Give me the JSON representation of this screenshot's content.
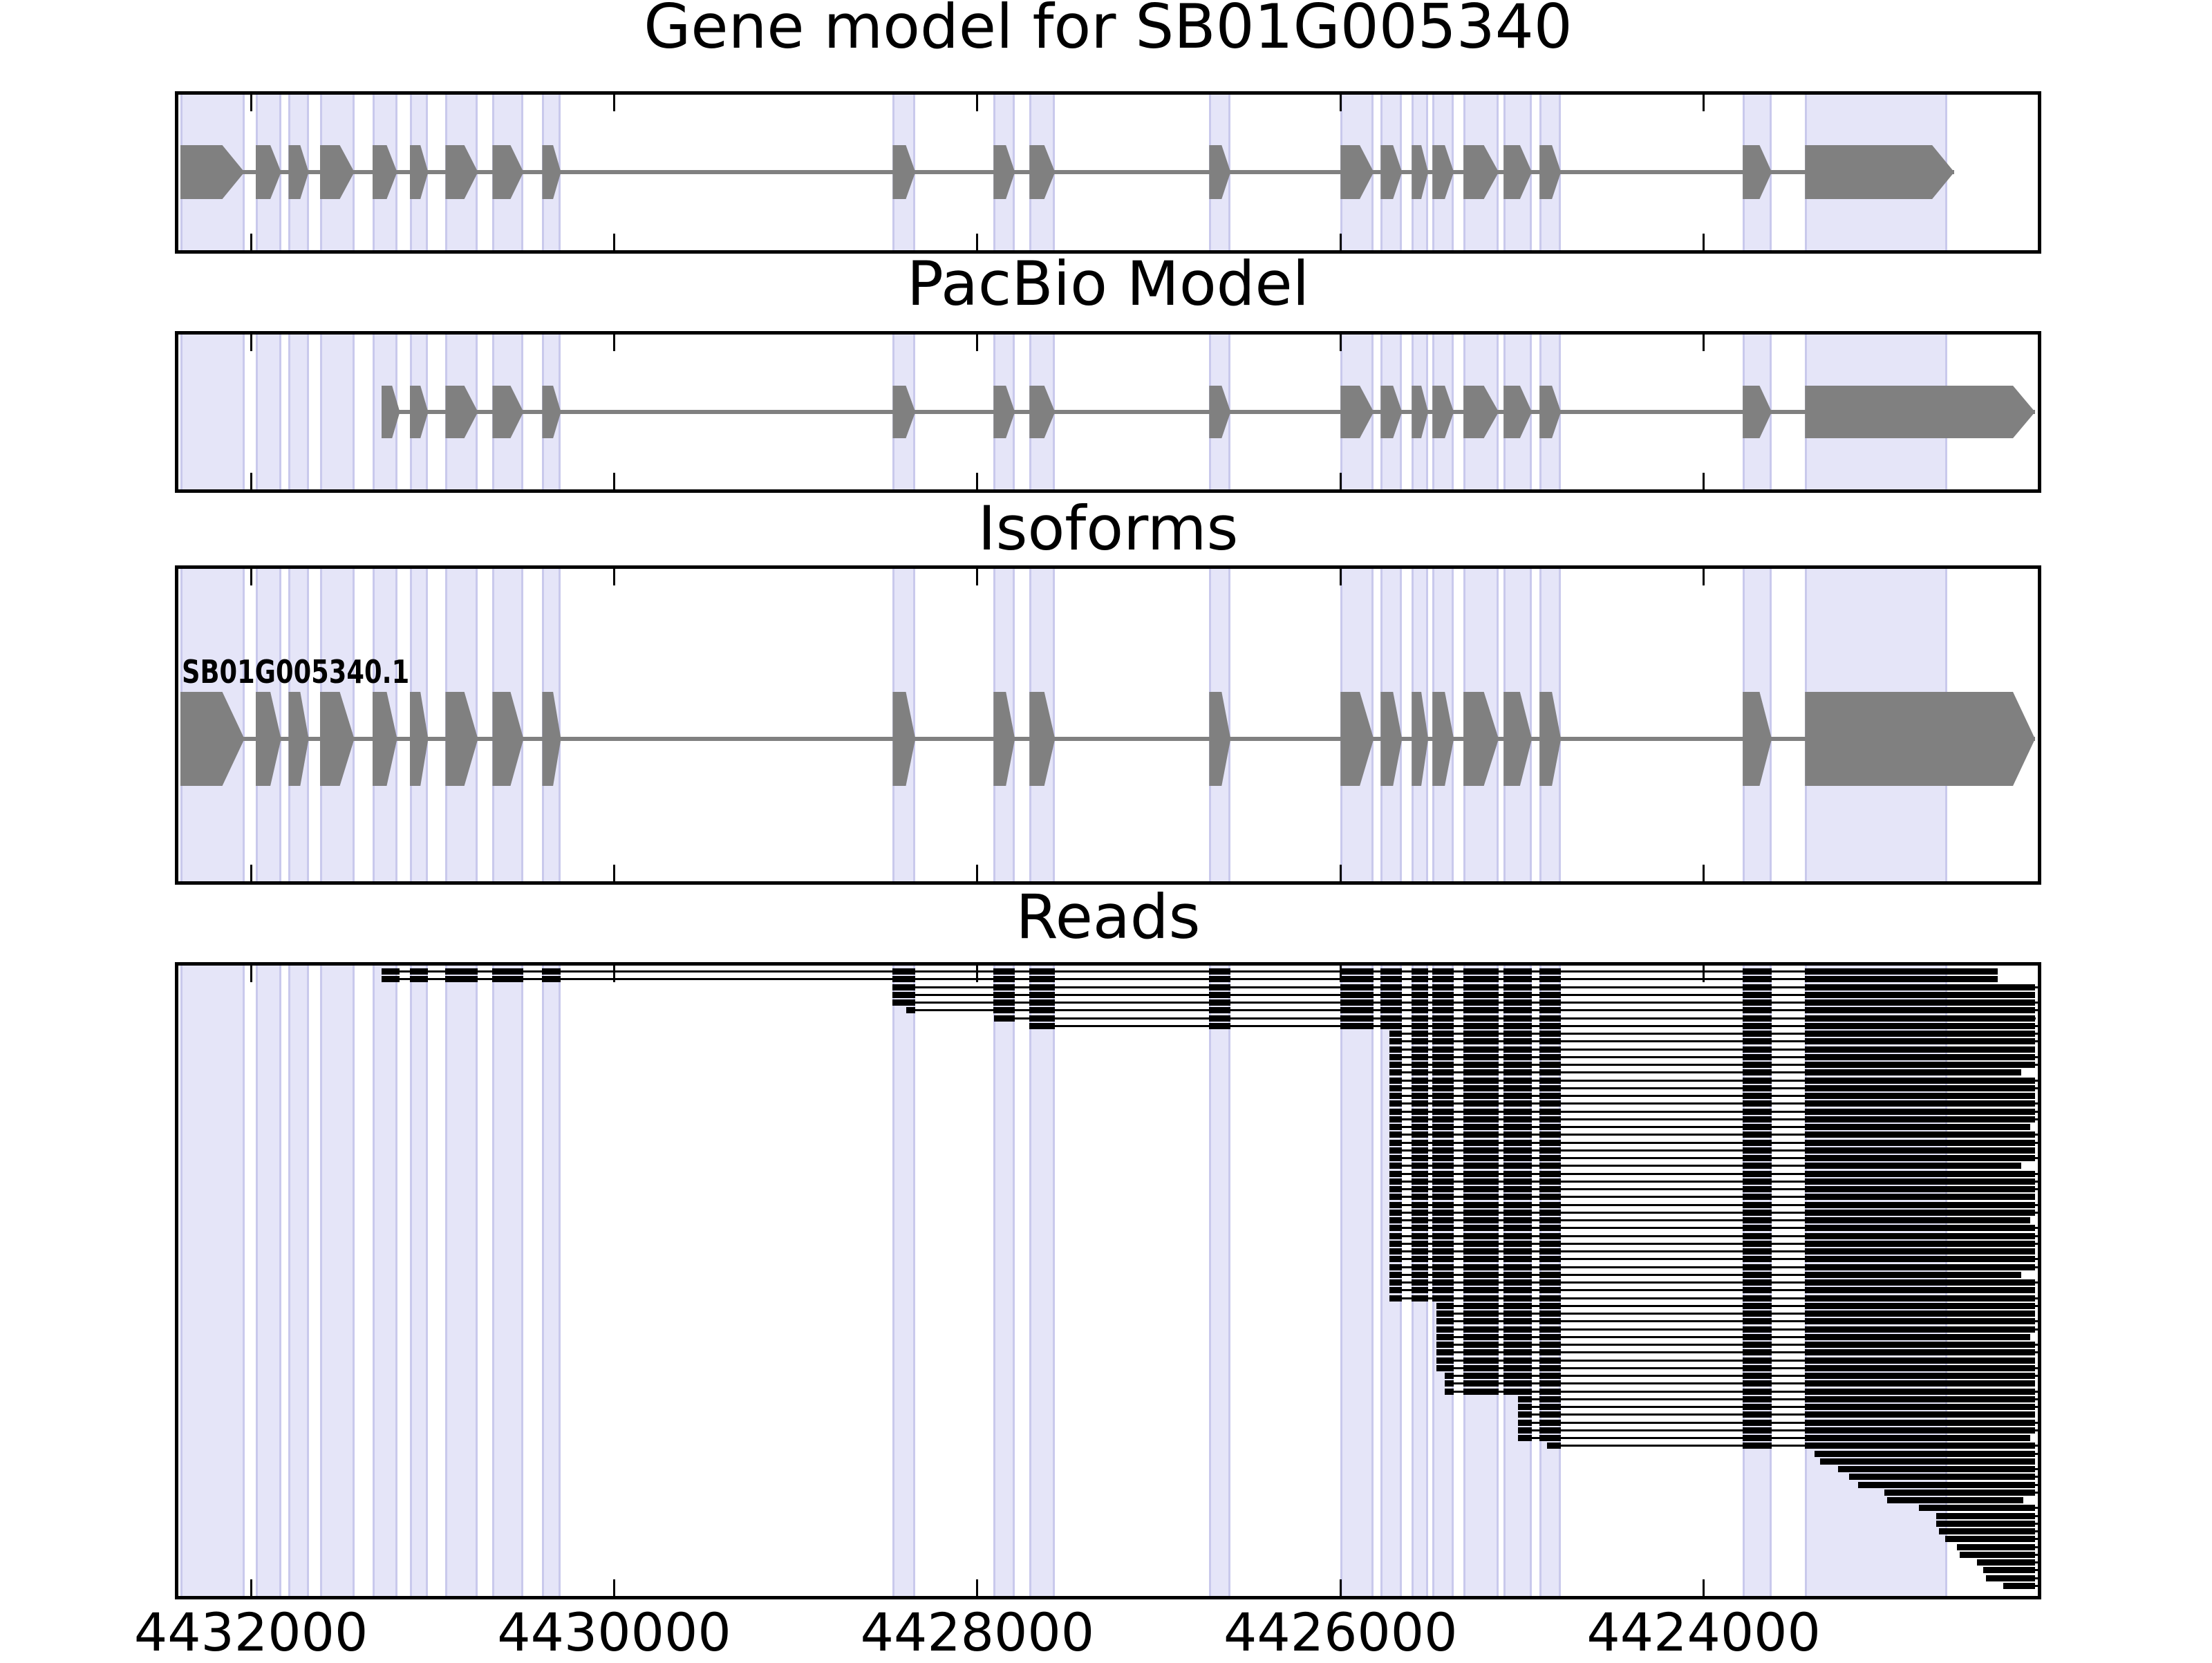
{
  "figure": {
    "colors": {
      "exon_fill": "#808080",
      "intron_line": "#808080",
      "read_color": "#000000",
      "band_fill": "#E5E5F8",
      "band_edge": "#C9C9EC",
      "panel_border": "#000000",
      "text": "#000000",
      "background": "#ffffff"
    }
  },
  "chart_data": {
    "type": "genome_tracks",
    "description": "Gene model / PacBio model / isoform / read alignment browser view; genomic x-axis decreasing left to right",
    "x_axis": {
      "xlim": [
        4432400,
        4422160
      ],
      "direction": "decreasing",
      "ticks": [
        4432000,
        4430000,
        4428000,
        4426000,
        4424000
      ],
      "tick_labels": [
        "4432000",
        "4430000",
        "4428000",
        "4426000",
        "4424000"
      ]
    },
    "highlight_regions": [
      [
        4432390,
        4432036
      ],
      [
        4431975,
        4431834
      ],
      [
        4431793,
        4431682
      ],
      [
        4431621,
        4431431
      ],
      [
        4431332,
        4431195
      ],
      [
        4431126,
        4431024
      ],
      [
        4430929,
        4430750
      ],
      [
        4430670,
        4430499
      ],
      [
        4430396,
        4430293
      ],
      [
        4428466,
        4428341
      ],
      [
        4427911,
        4427793
      ],
      [
        4427713,
        4427572
      ],
      [
        4426723,
        4426605
      ],
      [
        4426000,
        4425817
      ],
      [
        4425779,
        4425661
      ],
      [
        4425608,
        4425517
      ],
      [
        4425494,
        4425376
      ],
      [
        4425323,
        4425129
      ],
      [
        4425102,
        4424946
      ],
      [
        4424904,
        4424786
      ],
      [
        4423785,
        4423625
      ],
      [
        4423442,
        4422660
      ]
    ],
    "tracks": [
      {
        "title": "Gene model for SB01G005340",
        "type": "gene",
        "exons": [
          [
            4432390,
            4432036
          ],
          [
            4431975,
            4431834
          ],
          [
            4431793,
            4431682
          ],
          [
            4431621,
            4431431
          ],
          [
            4431332,
            4431195
          ],
          [
            4431126,
            4431024
          ],
          [
            4430929,
            4430750
          ],
          [
            4430670,
            4430499
          ],
          [
            4430396,
            4430293
          ],
          [
            4428466,
            4428341
          ],
          [
            4427911,
            4427793
          ],
          [
            4427713,
            4427572
          ],
          [
            4426723,
            4426605
          ],
          [
            4426000,
            4425817
          ],
          [
            4425779,
            4425661
          ],
          [
            4425608,
            4425517
          ],
          [
            4425494,
            4425376
          ],
          [
            4425323,
            4425129
          ],
          [
            4425102,
            4424946
          ],
          [
            4424904,
            4424786
          ],
          [
            4423785,
            4423625
          ],
          [
            4423442,
            4422620
          ]
        ]
      },
      {
        "title": "PacBio Model",
        "type": "gene",
        "exons": [
          [
            4431282,
            4431180
          ],
          [
            4431126,
            4431024
          ],
          [
            4430929,
            4430750
          ],
          [
            4430670,
            4430499
          ],
          [
            4430396,
            4430293
          ],
          [
            4428466,
            4428341
          ],
          [
            4427911,
            4427793
          ],
          [
            4427713,
            4427572
          ],
          [
            4426723,
            4426605
          ],
          [
            4426000,
            4425817
          ],
          [
            4425779,
            4425661
          ],
          [
            4425608,
            4425517
          ],
          [
            4425494,
            4425376
          ],
          [
            4425323,
            4425129
          ],
          [
            4425102,
            4424946
          ],
          [
            4424904,
            4424786
          ],
          [
            4423785,
            4423625
          ],
          [
            4423442,
            4422175
          ]
        ]
      },
      {
        "title": "Isoforms",
        "type": "gene",
        "label": "SB01G005340.1",
        "exons": [
          [
            4432390,
            4432036
          ],
          [
            4431975,
            4431834
          ],
          [
            4431793,
            4431682
          ],
          [
            4431621,
            4431431
          ],
          [
            4431332,
            4431195
          ],
          [
            4431126,
            4431024
          ],
          [
            4430929,
            4430750
          ],
          [
            4430670,
            4430499
          ],
          [
            4430396,
            4430293
          ],
          [
            4428466,
            4428341
          ],
          [
            4427911,
            4427793
          ],
          [
            4427713,
            4427572
          ],
          [
            4426723,
            4426605
          ],
          [
            4426000,
            4425817
          ],
          [
            4425779,
            4425661
          ],
          [
            4425608,
            4425517
          ],
          [
            4425494,
            4425376
          ],
          [
            4425323,
            4425129
          ],
          [
            4425102,
            4424946
          ],
          [
            4424904,
            4424786
          ],
          [
            4423785,
            4423625
          ],
          [
            4423442,
            4422175
          ]
        ]
      },
      {
        "title": "Reads",
        "type": "reads",
        "reads": [
          [
            4431282,
            4422380
          ],
          [
            4431282,
            4422380
          ],
          [
            4428466,
            4422160
          ],
          [
            4428466,
            4422175
          ],
          [
            4428466,
            4422160
          ],
          [
            4428390,
            4422160
          ],
          [
            4427907,
            4422170
          ],
          [
            4427713,
            4422160
          ],
          [
            4425730,
            4422160
          ],
          [
            4425730,
            4422160
          ],
          [
            4425730,
            4422175
          ],
          [
            4425730,
            4422160
          ],
          [
            4425730,
            4422160
          ],
          [
            4425730,
            4422250
          ],
          [
            4425730,
            4422160
          ],
          [
            4425730,
            4422160
          ],
          [
            4425730,
            4422175
          ],
          [
            4425730,
            4422160
          ],
          [
            4425730,
            4422160
          ],
          [
            4425730,
            4422160
          ],
          [
            4425730,
            4422200
          ],
          [
            4425730,
            4422160
          ],
          [
            4425730,
            4422160
          ],
          [
            4425730,
            4422175
          ],
          [
            4425730,
            4422160
          ],
          [
            4425730,
            4422250
          ],
          [
            4425730,
            4422160
          ],
          [
            4425730,
            4422160
          ],
          [
            4425730,
            4422160
          ],
          [
            4425730,
            4422175
          ],
          [
            4425730,
            4422160
          ],
          [
            4425730,
            4422160
          ],
          [
            4425730,
            4422200
          ],
          [
            4425730,
            4422160
          ],
          [
            4425730,
            4422160
          ],
          [
            4425730,
            4422160
          ],
          [
            4425730,
            4422175
          ],
          [
            4425730,
            4422160
          ],
          [
            4425730,
            4422160
          ],
          [
            4425730,
            4422250
          ],
          [
            4425730,
            4422160
          ],
          [
            4425730,
            4422175
          ],
          [
            4425730,
            4422160
          ],
          [
            4425471,
            4422160
          ],
          [
            4425471,
            4422175
          ],
          [
            4425471,
            4422160
          ],
          [
            4425471,
            4422160
          ],
          [
            4425471,
            4422200
          ],
          [
            4425471,
            4422160
          ],
          [
            4425471,
            4422160
          ],
          [
            4425471,
            4422175
          ],
          [
            4425471,
            4422160
          ],
          [
            4425425,
            4422160
          ],
          [
            4425425,
            4422175
          ],
          [
            4425425,
            4422160
          ],
          [
            4425022,
            4422160
          ],
          [
            4425022,
            4422160
          ],
          [
            4425022,
            4422175
          ],
          [
            4425022,
            4422160
          ],
          [
            4425022,
            4422160
          ],
          [
            4425022,
            4422200
          ],
          [
            4424862,
            4422160
          ],
          [
            4423389,
            4422160
          ],
          [
            4423358,
            4422175
          ],
          [
            4423260,
            4422160
          ],
          [
            4423199,
            4422160
          ],
          [
            4423149,
            4422160
          ],
          [
            4423005,
            4422160
          ],
          [
            4422990,
            4422240
          ],
          [
            4422815,
            4422160
          ],
          [
            4422720,
            4422160
          ],
          [
            4422720,
            4422160
          ],
          [
            4422704,
            4422160
          ],
          [
            4422670,
            4422160
          ],
          [
            4422605,
            4422160
          ],
          [
            4422590,
            4422160
          ],
          [
            4422495,
            4422160
          ],
          [
            4422461,
            4422160
          ],
          [
            4422446,
            4422160
          ],
          [
            4422350,
            4422160
          ]
        ]
      }
    ]
  }
}
